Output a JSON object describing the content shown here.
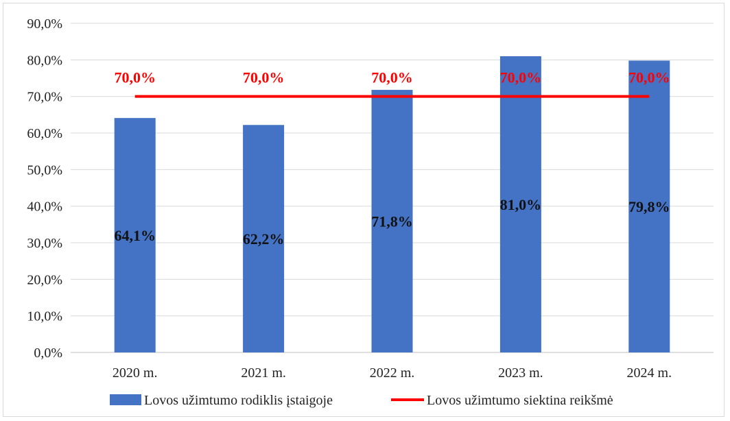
{
  "chart_data": {
    "type": "bar",
    "categories": [
      "2020 m.",
      "2021 m.",
      "2022 m.",
      "2023 m.",
      "2024 m."
    ],
    "series": [
      {
        "name": "Lovos užimtumo rodiklis įstaigoje",
        "type": "bar",
        "values": [
          64.1,
          62.2,
          71.8,
          81.0,
          79.8
        ],
        "labels": [
          "64,1%",
          "62,2%",
          "71,8%",
          "81,0%",
          "79,8%"
        ],
        "color": "#4472c4"
      },
      {
        "name": "Lovos užimtumo siektina reikšmė",
        "type": "line",
        "values": [
          70.0,
          70.0,
          70.0,
          70.0,
          70.0
        ],
        "labels": [
          "70,0%",
          "70,0%",
          "70,0%",
          "70,0%",
          "70,0%"
        ],
        "color": "#ff0000"
      }
    ],
    "y_ticks": [
      "0,0%",
      "10,0%",
      "20,0%",
      "30,0%",
      "40,0%",
      "50,0%",
      "60,0%",
      "70,0%",
      "80,0%",
      "90,0%"
    ],
    "ylim": [
      0,
      90
    ],
    "grid": true,
    "legend_position": "bottom"
  }
}
